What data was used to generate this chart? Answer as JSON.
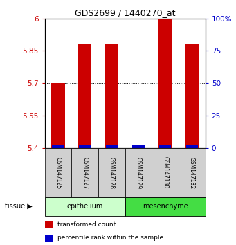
{
  "title": "GDS2699 / 1440270_at",
  "samples": [
    "GSM147125",
    "GSM147127",
    "GSM147128",
    "GSM147129",
    "GSM147130",
    "GSM147132"
  ],
  "transformed_counts": [
    5.7,
    5.88,
    5.88,
    5.4,
    6.0,
    5.88
  ],
  "percentile_ranks_pct": [
    10,
    10,
    10,
    3,
    3,
    10
  ],
  "ylim": [
    5.4,
    6.0
  ],
  "yticks": [
    5.4,
    5.55,
    5.7,
    5.85,
    6.0
  ],
  "ytick_labels_left": [
    "5.4",
    "5.55",
    "5.7",
    "5.85",
    "6"
  ],
  "ytick_labels_right": [
    "0",
    "25",
    "50",
    "75",
    "100%"
  ],
  "bar_color": "#cc0000",
  "percentile_color": "#0000cc",
  "bar_width": 0.5,
  "background_color": "#ffffff",
  "grid_color": "#000000",
  "tick_color_left": "#cc0000",
  "tick_color_right": "#0000cc",
  "tissue_label": "tissue",
  "tissue_groups": [
    {
      "label": "epithelium",
      "start": 0,
      "end": 2,
      "color": "#ccffcc"
    },
    {
      "label": "mesenchyme",
      "start": 3,
      "end": 5,
      "color": "#44dd44"
    }
  ],
  "sample_box_color": "#d0d0d0",
  "legend_items": [
    {
      "label": "transformed count",
      "color": "#cc0000"
    },
    {
      "label": "percentile rank within the sample",
      "color": "#0000cc"
    }
  ]
}
